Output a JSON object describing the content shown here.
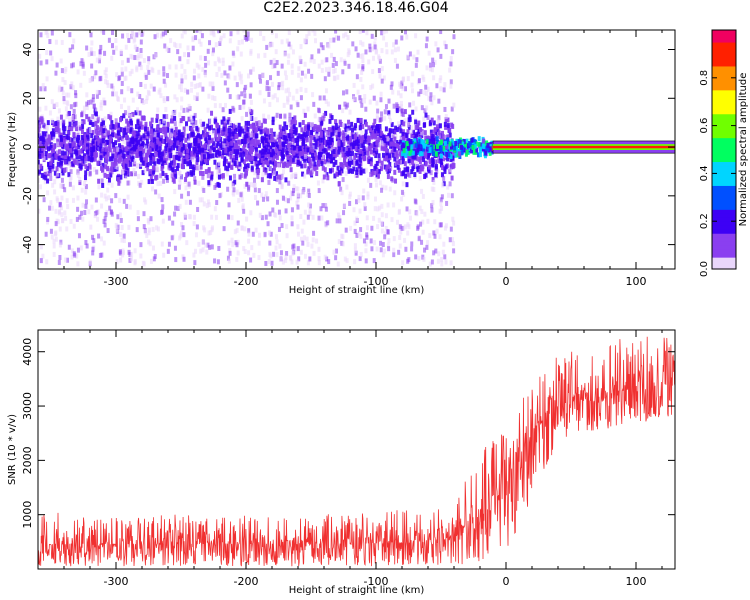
{
  "figure": {
    "title": "C2E2.2023.346.18.46.G04"
  },
  "chart_data": [
    {
      "type": "heatmap",
      "xlabel": "Height of straight line (km)",
      "ylabel": "Frequency (Hz)",
      "xlim": [
        -360,
        130
      ],
      "ylim": [
        -50,
        48
      ],
      "x_ticks": [
        -300,
        -200,
        -100,
        0,
        100
      ],
      "y_ticks": [
        -40,
        -20,
        0,
        20,
        40
      ],
      "grid": false,
      "colorbar": {
        "label": "Normalized spectral amplitude",
        "range": [
          0.0,
          1.0
        ],
        "ticks": [
          0.0,
          0.2,
          0.4,
          0.6,
          0.8
        ],
        "colormap": [
          "#e9d6fb",
          "#8a3ff0",
          "#3d00f5",
          "#0050ff",
          "#00d5ff",
          "#00ff60",
          "#70ff00",
          "#ffff00",
          "#ff9000",
          "#ff2000",
          "#f00060"
        ]
      },
      "features": [
        {
          "x_range": [
            -360,
            -40
          ],
          "center_hz": 0,
          "spread_hz": 12,
          "amplitude": 0.2,
          "note": "broadband noise band"
        },
        {
          "x_range": [
            -80,
            -10
          ],
          "center_hz": 0,
          "spread_hz": 3,
          "amplitude": 0.45
        },
        {
          "x_range": [
            -10,
            130
          ],
          "center_hz": 0,
          "spread_hz": 1,
          "amplitude": 0.9,
          "note": "strong narrow carrier line"
        }
      ]
    },
    {
      "type": "line",
      "xlabel": "Height of straight line (km)",
      "ylabel": "SNR (10 * v/v)",
      "xlim": [
        -360,
        130
      ],
      "ylim": [
        0,
        4400
      ],
      "x_ticks": [
        -300,
        -200,
        -100,
        0,
        100
      ],
      "y_ticks": [
        1000,
        2000,
        3000,
        4000
      ],
      "grid": false,
      "series": [
        {
          "color": "#f03030",
          "envelope": [
            {
              "x": -360,
              "low": 50,
              "high": 1050
            },
            {
              "x": -300,
              "low": 50,
              "high": 1000
            },
            {
              "x": -200,
              "low": 50,
              "high": 1000
            },
            {
              "x": -100,
              "low": 50,
              "high": 1050
            },
            {
              "x": -40,
              "low": 80,
              "high": 1200
            },
            {
              "x": -20,
              "low": 100,
              "high": 2200
            },
            {
              "x": 0,
              "low": 300,
              "high": 2700
            },
            {
              "x": 20,
              "low": 1300,
              "high": 3400
            },
            {
              "x": 40,
              "low": 2300,
              "high": 4000
            },
            {
              "x": 80,
              "low": 2600,
              "high": 4300
            },
            {
              "x": 130,
              "low": 2800,
              "high": 4300
            }
          ],
          "median": [
            {
              "x": -360,
              "y": 450
            },
            {
              "x": -100,
              "y": 470
            },
            {
              "x": -40,
              "y": 560
            },
            {
              "x": -20,
              "y": 1100
            },
            {
              "x": 0,
              "y": 1600
            },
            {
              "x": 20,
              "y": 2500
            },
            {
              "x": 40,
              "y": 3000
            },
            {
              "x": 80,
              "y": 3250
            },
            {
              "x": 130,
              "y": 3500
            }
          ]
        }
      ]
    }
  ]
}
